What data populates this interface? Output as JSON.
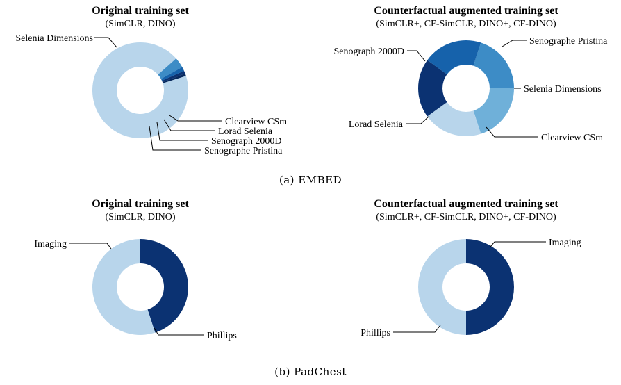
{
  "colors": {
    "palette": [
      "#b8d5eb",
      "#6fb0d9",
      "#3d8cc6",
      "#1662ab",
      "#0b3272"
    ]
  },
  "captions": {
    "embed": "(a) EMBED",
    "padchest": "(b) PadChest"
  },
  "chart_data": [
    {
      "type": "pie",
      "donut": true,
      "panel": "embed",
      "title": "Original training set",
      "subtitle": "(SimCLR, DINO)",
      "start_angle_deg": 17.5,
      "slices": [
        {
          "label": "Selenia Dimensions",
          "value": 93.3,
          "color": "#b8d5eb"
        },
        {
          "label": "Senographe Pristina",
          "value": 3.5,
          "color": "#3d8cc6"
        },
        {
          "label": "Senograph 2000D",
          "value": 1.4,
          "color": "#1662ab"
        },
        {
          "label": "Lorad Selenia",
          "value": 1.0,
          "color": "#0b3272"
        },
        {
          "label": "Clearview CSm",
          "value": 0.8,
          "color": "#082a5e"
        }
      ]
    },
    {
      "type": "pie",
      "donut": true,
      "panel": "embed",
      "title": "Counterfactual augmented training set",
      "subtitle": "(SimCLR+, CF-SimCLR, DINO+, CF-DINO)",
      "start_angle_deg": 0,
      "slices": [
        {
          "label": "Senographe Pristina",
          "value": 20,
          "color": "#6fb0d9"
        },
        {
          "label": "Selenia Dimensions",
          "value": 20,
          "color": "#b8d5eb"
        },
        {
          "label": "Clearview CSm",
          "value": 20,
          "color": "#0b3272"
        },
        {
          "label": "Lorad Selenia",
          "value": 20,
          "color": "#1662ab"
        },
        {
          "label": "Senograph 2000D",
          "value": 20,
          "color": "#3d8cc6"
        }
      ]
    },
    {
      "type": "pie",
      "donut": true,
      "panel": "padchest",
      "title": "Original training set",
      "subtitle": "(SimCLR, DINO)",
      "start_angle_deg": 90,
      "slices": [
        {
          "label": "Phillips",
          "value": 45,
          "color": "#0b3272"
        },
        {
          "label": "Imaging",
          "value": 55,
          "color": "#b8d5eb"
        }
      ]
    },
    {
      "type": "pie",
      "donut": true,
      "panel": "padchest",
      "title": "Counterfactual augmented training set",
      "subtitle": "(SimCLR+, CF-SimCLR, DINO+, CF-DINO)",
      "start_angle_deg": 90,
      "slices": [
        {
          "label": "Phillips",
          "value": 50,
          "color": "#0b3272"
        },
        {
          "label": "Imaging",
          "value": 50,
          "color": "#b8d5eb"
        }
      ]
    }
  ]
}
